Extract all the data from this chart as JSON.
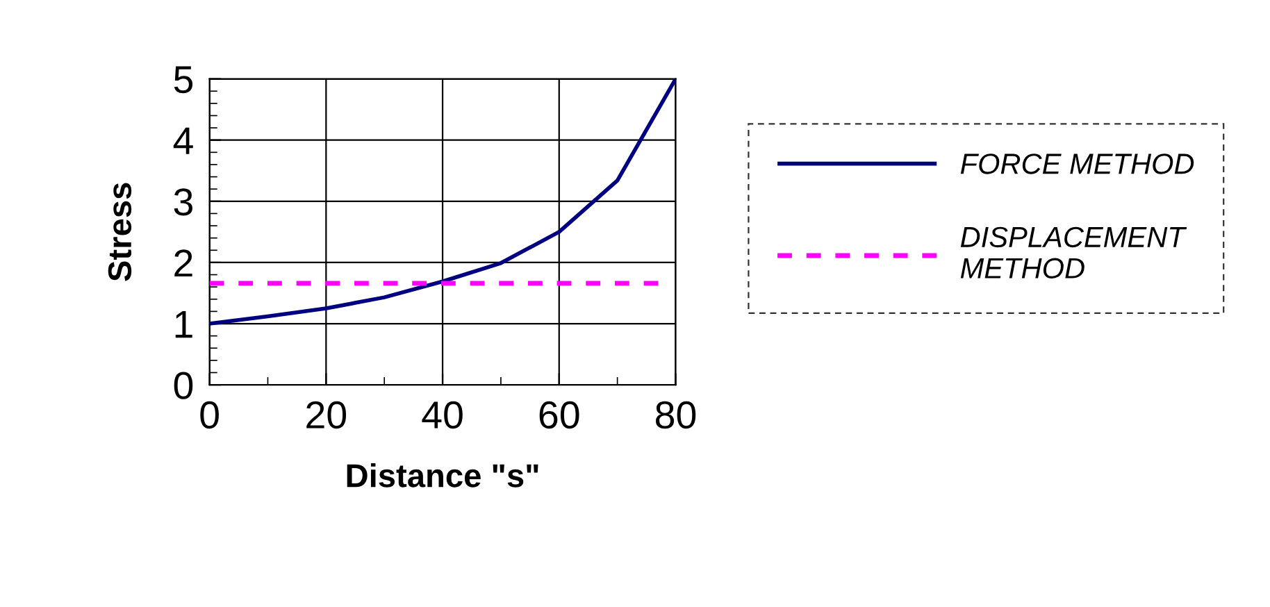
{
  "chart_data": {
    "type": "line",
    "xlabel": "Distance \"s\"",
    "ylabel": "Stress",
    "xlim": [
      0,
      80
    ],
    "xticks": [
      0,
      20,
      40,
      60,
      80
    ],
    "ylim": [
      0,
      5
    ],
    "yticks": [
      0,
      1,
      2,
      3,
      4,
      5
    ],
    "grid": true,
    "legend": "right",
    "marker": "none",
    "series": [
      {
        "name": "FORCE METHOD",
        "color": "#000080",
        "line_style": "solid",
        "x": [
          0,
          10,
          20,
          30,
          40,
          50,
          60,
          70,
          80
        ],
        "values": [
          1.0,
          1.12,
          1.25,
          1.43,
          1.69,
          1.99,
          2.5,
          3.34,
          5.0
        ]
      },
      {
        "name": "DISPLACEMENT\nMETHOD",
        "color": "#ff00ff",
        "line_style": "dashed",
        "x": [
          0,
          77
        ],
        "values": [
          1.66,
          1.66
        ]
      }
    ]
  }
}
